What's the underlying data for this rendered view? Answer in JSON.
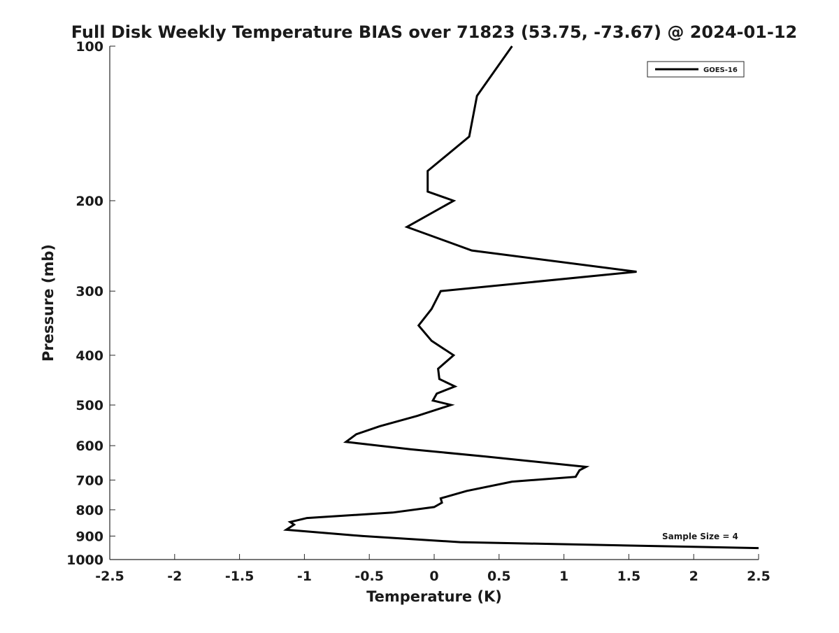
{
  "chart_data": {
    "type": "line",
    "title": "Full Disk Weekly Temperature BIAS over 71823 (53.75, -73.67) @ 2024-01-12",
    "xlabel": "Temperature (K)",
    "ylabel": "Pressure (mb)",
    "xlim": [
      -2.5,
      2.5
    ],
    "ylim": [
      1000,
      100
    ],
    "y_scale": "log",
    "y_reversed": true,
    "x_ticks": [
      -2.5,
      -2,
      -1.5,
      -1,
      -0.5,
      0,
      0.5,
      1,
      1.5,
      2,
      2.5
    ],
    "x_tick_labels": [
      "-2.5",
      "-2",
      "-1.5",
      "-1",
      "-0.5",
      "0",
      "0.5",
      "1",
      "1.5",
      "2",
      "2.5"
    ],
    "y_ticks": [
      100,
      200,
      300,
      400,
      500,
      600,
      700,
      800,
      900,
      1000
    ],
    "y_tick_labels": [
      "100",
      "200",
      "300",
      "400",
      "500",
      "600",
      "700",
      "800",
      "900",
      "1000"
    ],
    "grid": false,
    "legend_position": "top-right",
    "line_color": "#000000",
    "series": [
      {
        "name": "GOES-16",
        "points": [
          {
            "x": 0.6,
            "y": 100
          },
          {
            "x": 0.33,
            "y": 125
          },
          {
            "x": 0.27,
            "y": 150
          },
          {
            "x": -0.05,
            "y": 175
          },
          {
            "x": -0.05,
            "y": 192
          },
          {
            "x": 0.15,
            "y": 200
          },
          {
            "x": -0.21,
            "y": 225
          },
          {
            "x": 0.29,
            "y": 250
          },
          {
            "x": 1.56,
            "y": 275
          },
          {
            "x": 0.05,
            "y": 300
          },
          {
            "x": -0.02,
            "y": 325
          },
          {
            "x": -0.12,
            "y": 350
          },
          {
            "x": -0.02,
            "y": 375
          },
          {
            "x": 0.15,
            "y": 400
          },
          {
            "x": 0.03,
            "y": 425
          },
          {
            "x": 0.04,
            "y": 445
          },
          {
            "x": 0.16,
            "y": 460
          },
          {
            "x": 0.02,
            "y": 475
          },
          {
            "x": -0.01,
            "y": 490
          },
          {
            "x": 0.13,
            "y": 500
          },
          {
            "x": -0.13,
            "y": 525
          },
          {
            "x": -0.42,
            "y": 550
          },
          {
            "x": -0.6,
            "y": 570
          },
          {
            "x": -0.68,
            "y": 590
          },
          {
            "x": -0.18,
            "y": 610
          },
          {
            "x": 0.4,
            "y": 630
          },
          {
            "x": 1.17,
            "y": 660
          },
          {
            "x": 1.12,
            "y": 670
          },
          {
            "x": 1.09,
            "y": 690
          },
          {
            "x": 0.6,
            "y": 705
          },
          {
            "x": 0.25,
            "y": 735
          },
          {
            "x": 0.05,
            "y": 760
          },
          {
            "x": 0.06,
            "y": 775
          },
          {
            "x": 0.0,
            "y": 790
          },
          {
            "x": -0.32,
            "y": 810
          },
          {
            "x": -0.98,
            "y": 830
          },
          {
            "x": -1.11,
            "y": 845
          },
          {
            "x": -1.08,
            "y": 855
          },
          {
            "x": -1.14,
            "y": 875
          },
          {
            "x": -0.55,
            "y": 900
          },
          {
            "x": 0.2,
            "y": 925
          },
          {
            "x": 2.5,
            "y": 950
          }
        ]
      }
    ],
    "annotations": [
      "Sample Size = 4"
    ]
  }
}
